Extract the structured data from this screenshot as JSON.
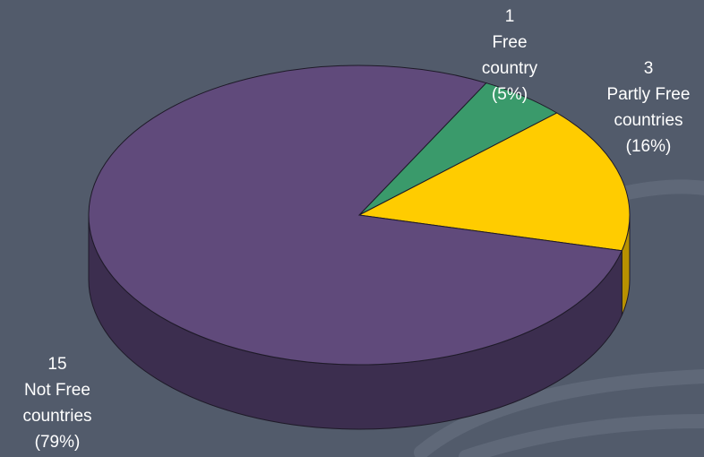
{
  "chart_data": {
    "type": "pie",
    "title": "",
    "slices": [
      {
        "name": "Free",
        "value": 1,
        "count_label": "1",
        "name_label": "Free",
        "unit_label": "country",
        "percent_label": "(5%)",
        "color": "#3a9a6b",
        "side_color": "#246447"
      },
      {
        "name": "Partly Free",
        "value": 3,
        "count_label": "3",
        "name_label": "Partly Free",
        "unit_label": "countries",
        "percent_label": "(16%)",
        "color": "#ffcc00",
        "side_color": "#b89100"
      },
      {
        "name": "Not Free",
        "value": 15,
        "count_label": "15",
        "name_label": "Not Free",
        "unit_label": "countries",
        "percent_label": "(79%)",
        "color": "#604a7b",
        "side_color": "#3c2e4f"
      }
    ],
    "start_angle_deg": -62,
    "style": "3d"
  },
  "colors": {
    "background": "#525b6b",
    "outline": "#1e1a28"
  }
}
